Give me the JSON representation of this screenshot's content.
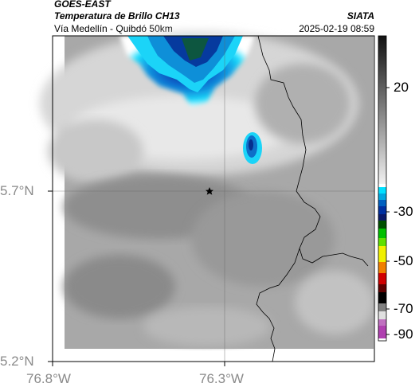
{
  "header": {
    "satellite": "GOES-EAST",
    "product": "Temperatura de Brillo CH13",
    "region": "Vía Medellín - Quibdó 50km",
    "agency": "SIATA",
    "datetime": "2025-02-19 08:59"
  },
  "map": {
    "lat_labels": [
      "5.7°N",
      "5.2°N"
    ],
    "lon_labels": [
      "76.8°W",
      "76.3°W"
    ],
    "marker": "star-marker"
  },
  "colorbar": {
    "ticks": [
      "20",
      "-30",
      "-50",
      "-70",
      "-90"
    ],
    "colors": {
      "warm_gray_top": "#111111",
      "warm_gray_bottom": "#f2f2f2",
      "cyan": "#00e0ff",
      "blue": "#0033aa",
      "green": "#00c000",
      "yellow": "#f0f000",
      "red": "#d00000",
      "black": "#000000",
      "magenta": "#b040b0"
    }
  }
}
